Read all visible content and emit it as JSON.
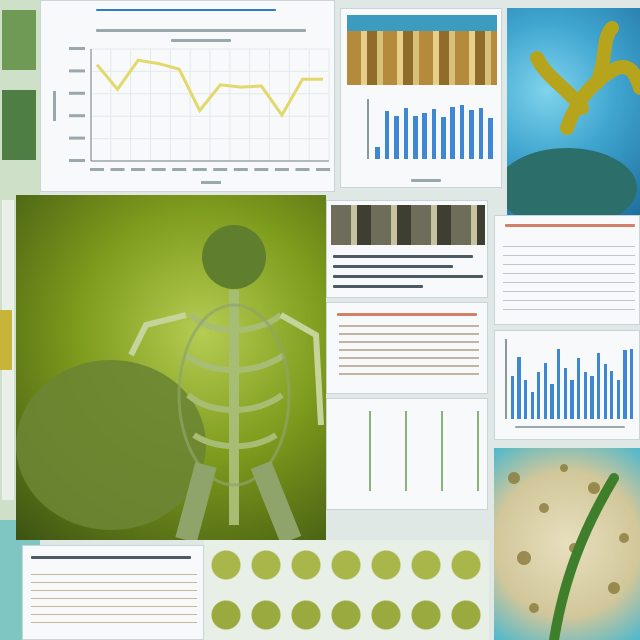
{
  "chart": {
    "values": [
      0.86,
      0.64,
      0.9,
      0.87,
      0.82,
      0.45,
      0.68,
      0.66,
      0.67,
      0.41,
      0.73,
      0.73
    ],
    "line_color": "#e3d86a"
  },
  "bars_top": {
    "values": [
      0.2,
      0.82,
      0.74,
      0.88,
      0.74,
      0.8,
      0.86,
      0.72,
      0.9,
      0.93,
      0.84,
      0.88,
      0.7
    ]
  },
  "bars_right": {
    "values": [
      0.55,
      0.8,
      0.5,
      0.35,
      0.6,
      0.72,
      0.45,
      0.9,
      0.65,
      0.5,
      0.78,
      0.6,
      0.55,
      0.85,
      0.7,
      0.62,
      0.5,
      0.88,
      0.9
    ]
  },
  "colors": {
    "green_bg": "#7d9b1c",
    "skeleton": "#8fa46a",
    "ocean": "#4aa8d0",
    "coral": "#b6a51c",
    "bar_blue": "#3f86d3"
  },
  "icons": {
    "creature": "skeleton-creature-icon",
    "coral": "coral-branch-icon",
    "stem": "plant-stem-icon"
  }
}
